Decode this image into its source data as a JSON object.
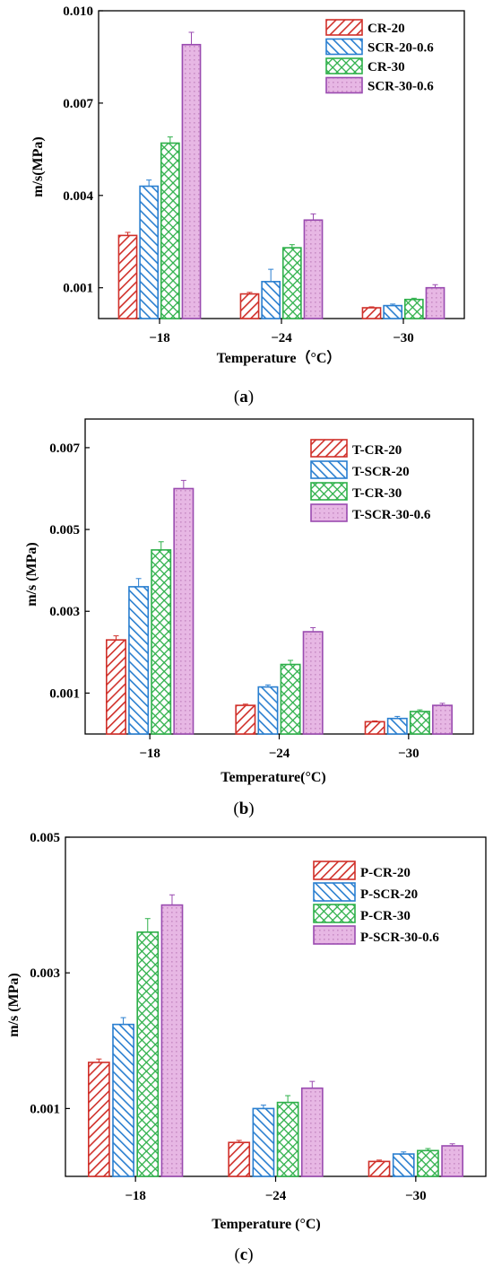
{
  "colors": {
    "red": "#d0302a",
    "blue": "#2a7fd0",
    "green": "#2eb04a",
    "purple": "#9a4bb0",
    "purple_fill": "#e7b7e4"
  },
  "chart_data": [
    {
      "type": "bar",
      "panel": "a",
      "caption_open": "(",
      "caption_letter": "a",
      "caption_close": ")",
      "xlabel": "Temperature（°C）",
      "ylabel": "m/s(MPa)",
      "categories": [
        "−18",
        "−24",
        "−30"
      ],
      "ylim": [
        0,
        0.01
      ],
      "yticks": [
        0.001,
        0.004,
        0.007,
        0.01
      ],
      "ytick_labels": [
        "0.001",
        "0.004",
        "0.007",
        "0.010"
      ],
      "legend_position": "top-right",
      "series": [
        {
          "name": "CR-20",
          "values": [
            0.0027,
            0.0008,
            0.00035
          ],
          "errors": [
            0.0001,
            5e-05,
            3e-05
          ],
          "pattern": "hatch-red"
        },
        {
          "name": "SCR-20-0.6",
          "values": [
            0.0043,
            0.0012,
            0.00042
          ],
          "errors": [
            0.0002,
            0.0004,
            5e-05
          ],
          "pattern": "hatch-blue"
        },
        {
          "name": "CR-30",
          "values": [
            0.0057,
            0.0023,
            0.00062
          ],
          "errors": [
            0.0002,
            0.0001,
            4e-05
          ],
          "pattern": "cross-green"
        },
        {
          "name": "SCR-30-0.6",
          "values": [
            0.0089,
            0.0032,
            0.001
          ],
          "errors": [
            0.0004,
            0.0002,
            0.0001
          ],
          "pattern": "dots-purple"
        }
      ]
    },
    {
      "type": "bar",
      "panel": "b",
      "caption_open": "(",
      "caption_letter": "b",
      "caption_close": ")",
      "xlabel": "Temperature(°C)",
      "ylabel": "m/s (MPa)",
      "categories": [
        "−18",
        "−24",
        "−30"
      ],
      "ylim": [
        0,
        0.0077
      ],
      "yticks": [
        0.001,
        0.003,
        0.005,
        0.007
      ],
      "ytick_labels": [
        "0.001",
        "0.003",
        "0.005",
        "0.007"
      ],
      "legend_position": "top-right",
      "series": [
        {
          "name": "T-CR-20",
          "values": [
            0.0023,
            0.0007,
            0.0003
          ],
          "errors": [
            0.0001,
            3e-05,
            2e-05
          ],
          "pattern": "hatch-red"
        },
        {
          "name": "T-SCR-20",
          "values": [
            0.0036,
            0.00115,
            0.00038
          ],
          "errors": [
            0.0002,
            5e-05,
            5e-05
          ],
          "pattern": "hatch-blue"
        },
        {
          "name": "T-CR-30",
          "values": [
            0.0045,
            0.0017,
            0.00055
          ],
          "errors": [
            0.0002,
            0.0001,
            4e-05
          ],
          "pattern": "cross-green"
        },
        {
          "name": "T-SCR-30-0.6",
          "values": [
            0.006,
            0.0025,
            0.0007
          ],
          "errors": [
            0.0002,
            0.0001,
            5e-05
          ],
          "pattern": "dots-purple"
        }
      ]
    },
    {
      "type": "bar",
      "panel": "c",
      "caption_open": "(",
      "caption_letter": "c",
      "caption_close": ")",
      "xlabel": "Temperature (°C)",
      "ylabel": "m/s (MPa)",
      "categories": [
        "−18",
        "−24",
        "−30"
      ],
      "ylim": [
        0,
        0.005
      ],
      "yticks": [
        0.001,
        0.003,
        0.005
      ],
      "ytick_labels": [
        "0.001",
        "0.003",
        "0.005"
      ],
      "legend_position": "top-right",
      "series": [
        {
          "name": "P-CR-20",
          "values": [
            0.00168,
            0.0005,
            0.00022
          ],
          "errors": [
            5e-05,
            3e-05,
            2e-05
          ],
          "pattern": "hatch-red"
        },
        {
          "name": "P-SCR-20",
          "values": [
            0.00224,
            0.001,
            0.00033
          ],
          "errors": [
            0.0001,
            5e-05,
            3e-05
          ],
          "pattern": "hatch-blue"
        },
        {
          "name": "P-CR-30",
          "values": [
            0.0036,
            0.00109,
            0.00038
          ],
          "errors": [
            0.0002,
            0.0001,
            3e-05
          ],
          "pattern": "cross-green"
        },
        {
          "name": "P-SCR-30-0.6",
          "values": [
            0.004,
            0.0013,
            0.00045
          ],
          "errors": [
            0.00015,
            0.0001,
            3e-05
          ],
          "pattern": "dots-purple"
        }
      ]
    }
  ]
}
